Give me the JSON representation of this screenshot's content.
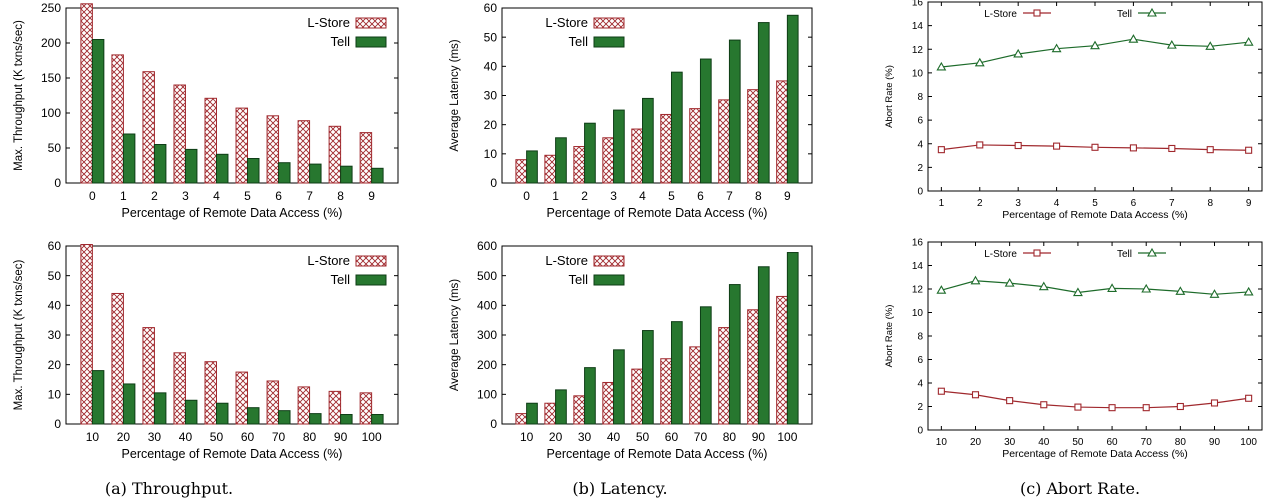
{
  "captions": [
    "(a) Throughput.",
    "(b) Latency.",
    "(c) Abort Rate."
  ],
  "colors": {
    "lstore": "#a0282d",
    "tell": "#1d6b2a",
    "tell_fill": "#27772f"
  },
  "chart_data": [
    {
      "type": "bar",
      "xlabel": "Percentage of Remote Data Access (%)",
      "ylabel": "Max. Throughput (K txns/sec)",
      "categories": [
        "0",
        "1",
        "2",
        "3",
        "4",
        "5",
        "6",
        "7",
        "8",
        "9"
      ],
      "ylim": [
        0,
        250
      ],
      "yticks": [
        0,
        50,
        100,
        150,
        200,
        250
      ],
      "series": [
        {
          "name": "L-Store",
          "values": [
            256,
            183,
            159,
            140,
            121,
            107,
            96,
            89,
            81,
            72
          ]
        },
        {
          "name": "Tell",
          "values": [
            205,
            70,
            55,
            48,
            41,
            35,
            29,
            27,
            24,
            21
          ]
        }
      ],
      "legend": "top-right"
    },
    {
      "type": "bar",
      "xlabel": "Percentage of Remote Data Access (%)",
      "ylabel": "Average Latency (ms)",
      "categories": [
        "0",
        "1",
        "2",
        "3",
        "4",
        "5",
        "6",
        "7",
        "8",
        "9"
      ],
      "ylim": [
        0,
        60
      ],
      "yticks": [
        0,
        10,
        20,
        30,
        40,
        50,
        60
      ],
      "series": [
        {
          "name": "L-Store",
          "values": [
            8,
            9.5,
            12.5,
            15.5,
            18.5,
            23.5,
            25.5,
            28.5,
            32,
            35
          ]
        },
        {
          "name": "Tell",
          "values": [
            11,
            15.5,
            20.5,
            25,
            29,
            38,
            42.5,
            49,
            55,
            57.5
          ]
        }
      ],
      "legend": "top-left"
    },
    {
      "type": "line",
      "xlabel": "Percentage of Remote Data Access (%)",
      "ylabel": "Abort Rate (%)",
      "x": [
        1,
        2,
        3,
        4,
        5,
        6,
        7,
        8,
        9
      ],
      "xticks": [
        "1",
        "2",
        "3",
        "4",
        "5",
        "6",
        "7",
        "8",
        "9"
      ],
      "ylim": [
        0,
        16
      ],
      "yticks": [
        0,
        2,
        4,
        6,
        8,
        10,
        12,
        14,
        16
      ],
      "series": [
        {
          "name": "L-Store",
          "values": [
            3.5,
            3.9,
            3.85,
            3.8,
            3.7,
            3.65,
            3.6,
            3.5,
            3.45
          ],
          "marker": "square"
        },
        {
          "name": "Tell",
          "values": [
            10.5,
            10.85,
            11.6,
            12.05,
            12.3,
            12.85,
            12.35,
            12.25,
            12.6
          ],
          "marker": "triangle"
        }
      ],
      "legend": "top"
    },
    {
      "type": "bar",
      "xlabel": "Percentage of Remote Data Access (%)",
      "ylabel": "Max. Throughput (K txns/sec)",
      "categories": [
        "10",
        "20",
        "30",
        "40",
        "50",
        "60",
        "70",
        "80",
        "90",
        "100"
      ],
      "ylim": [
        0,
        60
      ],
      "yticks": [
        0,
        10,
        20,
        30,
        40,
        50,
        60
      ],
      "series": [
        {
          "name": "L-Store",
          "values": [
            60.5,
            44,
            32.5,
            24,
            21,
            17.5,
            14.5,
            12.5,
            11,
            10.5
          ]
        },
        {
          "name": "Tell",
          "values": [
            18,
            13.5,
            10.5,
            8,
            7,
            5.5,
            4.5,
            3.5,
            3.2,
            3.2
          ]
        }
      ],
      "legend": "top-right"
    },
    {
      "type": "bar",
      "xlabel": "Percentage of Remote Data Access (%)",
      "ylabel": "Average Latency (ms)",
      "categories": [
        "10",
        "20",
        "30",
        "40",
        "50",
        "60",
        "70",
        "80",
        "90",
        "100"
      ],
      "ylim": [
        0,
        600
      ],
      "yticks": [
        0,
        100,
        200,
        300,
        400,
        500,
        600
      ],
      "series": [
        {
          "name": "L-Store",
          "values": [
            35,
            70,
            95,
            140,
            185,
            220,
            260,
            325,
            385,
            430
          ]
        },
        {
          "name": "Tell",
          "values": [
            70,
            115,
            190,
            250,
            315,
            345,
            395,
            470,
            530,
            578
          ]
        }
      ],
      "legend": "top-left"
    },
    {
      "type": "line",
      "xlabel": "Percentage of Remote Data Access (%)",
      "ylabel": "Abort Rate (%)",
      "x": [
        10,
        20,
        30,
        40,
        50,
        60,
        70,
        80,
        90,
        100
      ],
      "xticks": [
        "10",
        "20",
        "30",
        "40",
        "50",
        "60",
        "70",
        "80",
        "90",
        "100"
      ],
      "ylim": [
        0,
        16
      ],
      "yticks": [
        0,
        2,
        4,
        6,
        8,
        10,
        12,
        14,
        16
      ],
      "series": [
        {
          "name": "L-Store",
          "values": [
            3.3,
            3.0,
            2.5,
            2.15,
            1.95,
            1.9,
            1.9,
            2.0,
            2.3,
            2.7
          ],
          "marker": "square"
        },
        {
          "name": "Tell",
          "values": [
            11.9,
            12.7,
            12.5,
            12.2,
            11.7,
            12.05,
            12.0,
            11.8,
            11.55,
            11.75
          ],
          "marker": "triangle"
        }
      ],
      "legend": "top"
    }
  ]
}
